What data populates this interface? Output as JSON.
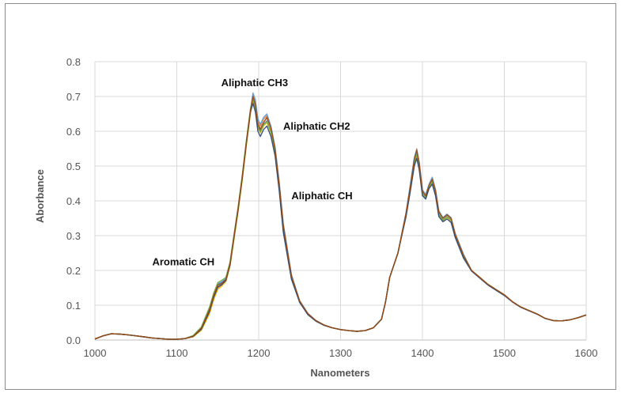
{
  "chart_data": {
    "type": "line",
    "title": "",
    "xlabel": "Nanometers",
    "ylabel": "Aborbance",
    "xlim": [
      1000,
      1600
    ],
    "ylim": [
      0,
      0.8
    ],
    "x_ticks": [
      1000,
      1100,
      1200,
      1300,
      1400,
      1500,
      1600
    ],
    "x_tick_labels": [
      "1000",
      "1100",
      "1200",
      "1300",
      "1400",
      "1500",
      "1600"
    ],
    "y_ticks": [
      0,
      0.1,
      0.2,
      0.3,
      0.4,
      0.5,
      0.6,
      0.7,
      0.8
    ],
    "y_tick_labels": [
      "0.0",
      "0.1",
      "0.2",
      "0.3",
      "0.4",
      "0.5",
      "0.6",
      "0.7",
      "0.8"
    ],
    "grid": true,
    "legend": "none",
    "annotations": [
      {
        "text": "Aliphatic CH3",
        "x": 1195,
        "y": 0.73
      },
      {
        "text": "Aliphatic CH2",
        "x": 1230,
        "y": 0.605
      },
      {
        "text": "Aliphatic CH",
        "x": 1240,
        "y": 0.405
      },
      {
        "text": "Aromatic CH",
        "x": 1070,
        "y": 0.215
      }
    ],
    "colors": [
      "#4472c4",
      "#ed7d31",
      "#a5a5a5",
      "#ffc000",
      "#5b9bd5",
      "#70ad47",
      "#264478",
      "#9e480e"
    ],
    "x": [
      1000,
      1010,
      1020,
      1030,
      1040,
      1050,
      1060,
      1070,
      1080,
      1090,
      1100,
      1110,
      1120,
      1130,
      1140,
      1145,
      1150,
      1155,
      1160,
      1165,
      1170,
      1175,
      1180,
      1185,
      1190,
      1193,
      1196,
      1199,
      1202,
      1206,
      1210,
      1215,
      1220,
      1225,
      1230,
      1240,
      1250,
      1260,
      1270,
      1280,
      1290,
      1300,
      1310,
      1320,
      1330,
      1340,
      1350,
      1355,
      1360,
      1370,
      1380,
      1385,
      1390,
      1393,
      1396,
      1400,
      1404,
      1408,
      1412,
      1416,
      1420,
      1425,
      1430,
      1435,
      1440,
      1450,
      1460,
      1470,
      1480,
      1490,
      1500,
      1510,
      1520,
      1530,
      1540,
      1550,
      1560,
      1570,
      1580,
      1590,
      1600
    ],
    "series": [
      {
        "values": [
          0.003,
          0.012,
          0.018,
          0.017,
          0.015,
          0.012,
          0.009,
          0.006,
          0.004,
          0.002,
          0.002,
          0.004,
          0.012,
          0.035,
          0.09,
          0.13,
          0.16,
          0.165,
          0.175,
          0.22,
          0.3,
          0.38,
          0.47,
          0.57,
          0.66,
          0.695,
          0.67,
          0.615,
          0.6,
          0.62,
          0.63,
          0.6,
          0.54,
          0.44,
          0.32,
          0.18,
          0.11,
          0.075,
          0.055,
          0.042,
          0.035,
          0.03,
          0.027,
          0.025,
          0.027,
          0.035,
          0.06,
          0.11,
          0.18,
          0.25,
          0.36,
          0.43,
          0.51,
          0.535,
          0.5,
          0.42,
          0.41,
          0.44,
          0.455,
          0.42,
          0.36,
          0.345,
          0.355,
          0.345,
          0.3,
          0.24,
          0.2,
          0.18,
          0.16,
          0.145,
          0.13,
          0.11,
          0.095,
          0.085,
          0.075,
          0.062,
          0.056,
          0.055,
          0.058,
          0.064,
          0.072
        ]
      },
      {
        "values": [
          0.003,
          0.012,
          0.018,
          0.017,
          0.015,
          0.012,
          0.009,
          0.006,
          0.004,
          0.002,
          0.002,
          0.004,
          0.01,
          0.03,
          0.08,
          0.12,
          0.15,
          0.158,
          0.17,
          0.215,
          0.295,
          0.375,
          0.465,
          0.565,
          0.655,
          0.705,
          0.685,
          0.63,
          0.615,
          0.635,
          0.645,
          0.61,
          0.55,
          0.45,
          0.33,
          0.185,
          0.112,
          0.076,
          0.056,
          0.043,
          0.035,
          0.03,
          0.027,
          0.025,
          0.027,
          0.035,
          0.06,
          0.11,
          0.18,
          0.25,
          0.365,
          0.44,
          0.52,
          0.55,
          0.51,
          0.43,
          0.415,
          0.445,
          0.465,
          0.43,
          0.37,
          0.35,
          0.36,
          0.35,
          0.305,
          0.245,
          0.2,
          0.18,
          0.16,
          0.145,
          0.13,
          0.11,
          0.095,
          0.085,
          0.075,
          0.062,
          0.056,
          0.055,
          0.058,
          0.064,
          0.072
        ]
      },
      {
        "values": [
          0.003,
          0.012,
          0.018,
          0.017,
          0.015,
          0.012,
          0.009,
          0.006,
          0.004,
          0.002,
          0.002,
          0.004,
          0.011,
          0.033,
          0.085,
          0.125,
          0.155,
          0.16,
          0.172,
          0.218,
          0.298,
          0.378,
          0.468,
          0.568,
          0.658,
          0.7,
          0.678,
          0.622,
          0.607,
          0.627,
          0.637,
          0.605,
          0.545,
          0.445,
          0.325,
          0.182,
          0.111,
          0.075,
          0.055,
          0.042,
          0.035,
          0.03,
          0.027,
          0.025,
          0.027,
          0.035,
          0.06,
          0.11,
          0.18,
          0.25,
          0.362,
          0.435,
          0.515,
          0.542,
          0.505,
          0.425,
          0.412,
          0.442,
          0.46,
          0.425,
          0.365,
          0.347,
          0.357,
          0.347,
          0.302,
          0.242,
          0.2,
          0.18,
          0.16,
          0.145,
          0.13,
          0.11,
          0.095,
          0.085,
          0.075,
          0.062,
          0.056,
          0.055,
          0.058,
          0.064,
          0.072
        ]
      },
      {
        "values": [
          0.003,
          0.012,
          0.018,
          0.017,
          0.015,
          0.012,
          0.009,
          0.006,
          0.004,
          0.002,
          0.002,
          0.004,
          0.009,
          0.028,
          0.075,
          0.115,
          0.145,
          0.155,
          0.168,
          0.212,
          0.29,
          0.37,
          0.46,
          0.56,
          0.65,
          0.69,
          0.665,
          0.61,
          0.595,
          0.615,
          0.625,
          0.595,
          0.535,
          0.435,
          0.315,
          0.178,
          0.109,
          0.074,
          0.055,
          0.042,
          0.035,
          0.03,
          0.027,
          0.025,
          0.027,
          0.035,
          0.06,
          0.11,
          0.18,
          0.25,
          0.358,
          0.428,
          0.505,
          0.53,
          0.495,
          0.418,
          0.408,
          0.438,
          0.452,
          0.418,
          0.358,
          0.342,
          0.352,
          0.342,
          0.298,
          0.238,
          0.2,
          0.18,
          0.16,
          0.145,
          0.13,
          0.11,
          0.095,
          0.085,
          0.075,
          0.062,
          0.056,
          0.055,
          0.058,
          0.064,
          0.072
        ]
      },
      {
        "values": [
          0.003,
          0.012,
          0.018,
          0.017,
          0.015,
          0.012,
          0.009,
          0.006,
          0.004,
          0.002,
          0.002,
          0.004,
          0.012,
          0.036,
          0.092,
          0.132,
          0.162,
          0.168,
          0.178,
          0.222,
          0.302,
          0.382,
          0.472,
          0.572,
          0.662,
          0.71,
          0.69,
          0.635,
          0.62,
          0.64,
          0.65,
          0.615,
          0.555,
          0.455,
          0.335,
          0.188,
          0.113,
          0.077,
          0.056,
          0.043,
          0.035,
          0.03,
          0.027,
          0.025,
          0.027,
          0.035,
          0.06,
          0.11,
          0.18,
          0.25,
          0.368,
          0.445,
          0.525,
          0.548,
          0.512,
          0.432,
          0.418,
          0.448,
          0.468,
          0.432,
          0.372,
          0.352,
          0.362,
          0.352,
          0.307,
          0.247,
          0.2,
          0.18,
          0.16,
          0.145,
          0.13,
          0.11,
          0.095,
          0.085,
          0.075,
          0.062,
          0.056,
          0.055,
          0.058,
          0.064,
          0.072
        ]
      },
      {
        "values": [
          0.003,
          0.012,
          0.018,
          0.017,
          0.015,
          0.012,
          0.009,
          0.006,
          0.004,
          0.002,
          0.002,
          0.004,
          0.013,
          0.038,
          0.095,
          0.135,
          0.165,
          0.172,
          0.18,
          0.225,
          0.305,
          0.385,
          0.475,
          0.575,
          0.665,
          0.69,
          0.665,
          0.61,
          0.598,
          0.618,
          0.628,
          0.598,
          0.538,
          0.438,
          0.318,
          0.178,
          0.109,
          0.074,
          0.055,
          0.042,
          0.035,
          0.03,
          0.027,
          0.025,
          0.027,
          0.035,
          0.06,
          0.11,
          0.18,
          0.25,
          0.36,
          0.43,
          0.508,
          0.532,
          0.498,
          0.42,
          0.408,
          0.438,
          0.455,
          0.42,
          0.36,
          0.344,
          0.354,
          0.344,
          0.299,
          0.239,
          0.2,
          0.18,
          0.16,
          0.145,
          0.13,
          0.11,
          0.095,
          0.085,
          0.075,
          0.062,
          0.056,
          0.055,
          0.058,
          0.064,
          0.072
        ]
      },
      {
        "values": [
          0.003,
          0.012,
          0.018,
          0.017,
          0.015,
          0.012,
          0.009,
          0.006,
          0.004,
          0.002,
          0.002,
          0.004,
          0.01,
          0.031,
          0.082,
          0.122,
          0.152,
          0.159,
          0.171,
          0.216,
          0.296,
          0.376,
          0.466,
          0.566,
          0.656,
          0.68,
          0.655,
          0.6,
          0.585,
          0.605,
          0.615,
          0.585,
          0.53,
          0.43,
          0.31,
          0.175,
          0.108,
          0.073,
          0.054,
          0.042,
          0.035,
          0.03,
          0.027,
          0.025,
          0.027,
          0.035,
          0.06,
          0.11,
          0.18,
          0.25,
          0.355,
          0.425,
          0.5,
          0.522,
          0.49,
          0.415,
          0.405,
          0.435,
          0.448,
          0.414,
          0.355,
          0.34,
          0.348,
          0.338,
          0.295,
          0.236,
          0.198,
          0.178,
          0.158,
          0.143,
          0.128,
          0.109,
          0.094,
          0.084,
          0.074,
          0.062,
          0.056,
          0.055,
          0.058,
          0.064,
          0.072
        ]
      },
      {
        "values": [
          0.003,
          0.012,
          0.018,
          0.017,
          0.015,
          0.012,
          0.009,
          0.006,
          0.004,
          0.002,
          0.002,
          0.004,
          0.011,
          0.034,
          0.088,
          0.128,
          0.158,
          0.163,
          0.174,
          0.219,
          0.299,
          0.379,
          0.469,
          0.569,
          0.659,
          0.7,
          0.675,
          0.62,
          0.605,
          0.625,
          0.64,
          0.61,
          0.55,
          0.45,
          0.33,
          0.185,
          0.112,
          0.076,
          0.056,
          0.043,
          0.035,
          0.03,
          0.027,
          0.025,
          0.027,
          0.035,
          0.06,
          0.11,
          0.18,
          0.25,
          0.364,
          0.438,
          0.518,
          0.545,
          0.508,
          0.428,
          0.414,
          0.444,
          0.462,
          0.428,
          0.368,
          0.35,
          0.36,
          0.35,
          0.304,
          0.244,
          0.2,
          0.18,
          0.16,
          0.145,
          0.13,
          0.11,
          0.095,
          0.085,
          0.075,
          0.062,
          0.056,
          0.055,
          0.058,
          0.064,
          0.072
        ]
      }
    ]
  }
}
